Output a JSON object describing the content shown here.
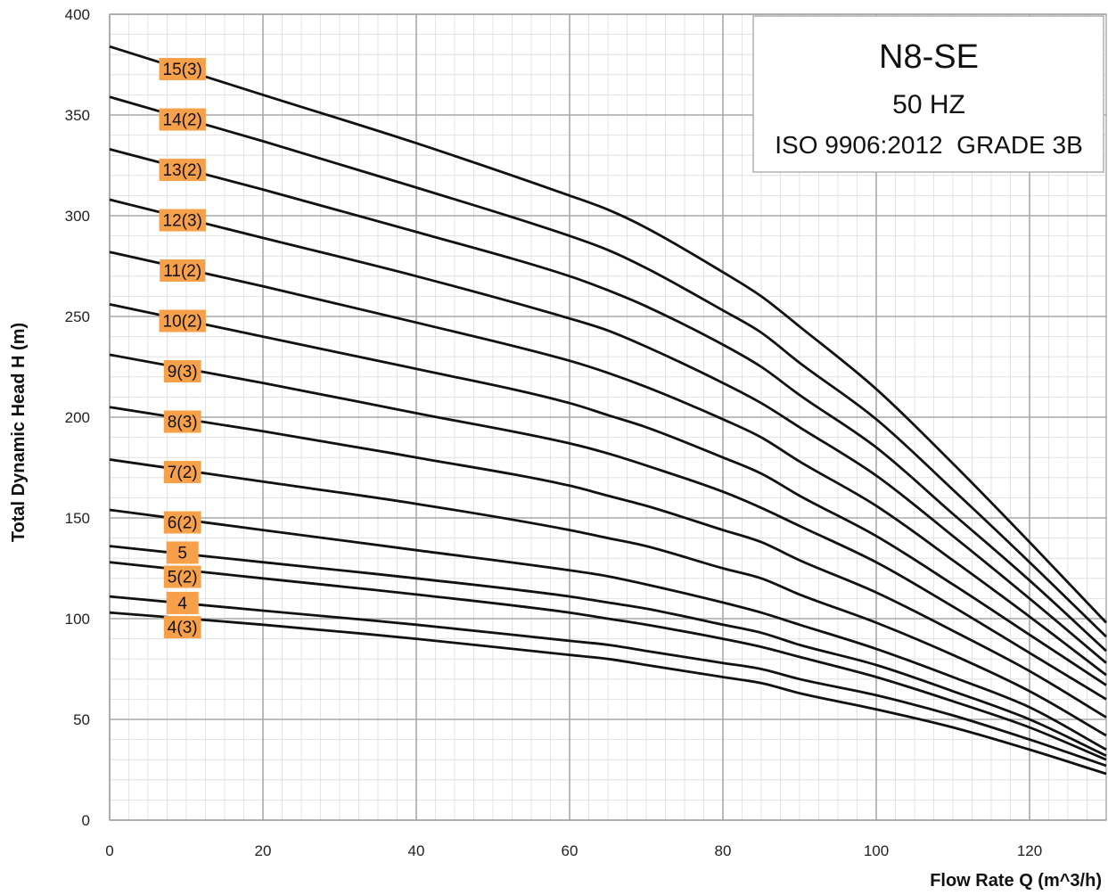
{
  "chart_data": {
    "type": "line",
    "title": "N8-SE",
    "subtitle_lines": [
      "50 HZ",
      "ISO 9906:2012  GRADE 3B"
    ],
    "xlabel": "Flow Rate Q (m^3/h)",
    "ylabel": "Total Dynamic Head  H (m)",
    "xlim": [
      0,
      130
    ],
    "ylim": [
      0,
      400
    ],
    "x_ticks": [
      0,
      20,
      40,
      60,
      80,
      100,
      120
    ],
    "y_ticks": [
      0,
      50,
      100,
      150,
      200,
      250,
      300,
      350,
      400
    ],
    "grid": "on",
    "label_color": "#f7a04a",
    "series": [
      {
        "name": "15(3)",
        "label_y": 373,
        "x": [
          0,
          20,
          40,
          60,
          65,
          70,
          80,
          85,
          90,
          100,
          110,
          120,
          130
        ],
        "y": [
          384,
          360,
          336,
          310,
          303,
          294,
          272,
          260,
          245,
          214,
          177,
          138,
          98
        ]
      },
      {
        "name": "14(2)",
        "label_y": 348,
        "x": [
          0,
          20,
          40,
          60,
          65,
          70,
          80,
          85,
          90,
          100,
          110,
          120,
          130
        ],
        "y": [
          359,
          337,
          314,
          290,
          283,
          274,
          253,
          242,
          227,
          199,
          164,
          128,
          91
        ]
      },
      {
        "name": "13(2)",
        "label_y": 323,
        "x": [
          0,
          20,
          40,
          60,
          65,
          70,
          80,
          85,
          90,
          100,
          110,
          120,
          130
        ],
        "y": [
          333,
          313,
          292,
          270,
          263,
          255,
          236,
          225,
          211,
          185,
          152,
          119,
          84
        ]
      },
      {
        "name": "12(3)",
        "label_y": 298,
        "x": [
          0,
          20,
          40,
          60,
          65,
          70,
          80,
          85,
          90,
          100,
          110,
          120,
          130
        ],
        "y": [
          308,
          289,
          270,
          249,
          243,
          235,
          217,
          207,
          195,
          171,
          141,
          110,
          78
        ]
      },
      {
        "name": "11(2)",
        "label_y": 273,
        "x": [
          0,
          20,
          40,
          60,
          65,
          70,
          80,
          85,
          90,
          100,
          110,
          120,
          130
        ],
        "y": [
          282,
          265,
          247,
          228,
          222,
          215,
          199,
          190,
          178,
          156,
          129,
          101,
          72
        ]
      },
      {
        "name": "10(2)",
        "label_y": 248,
        "x": [
          0,
          20,
          40,
          60,
          65,
          70,
          80,
          85,
          90,
          100,
          110,
          120,
          130
        ],
        "y": [
          256,
          240,
          224,
          207,
          201,
          195,
          180,
          172,
          161,
          141,
          117,
          92,
          67
        ]
      },
      {
        "name": "9(3)",
        "label_y": 223,
        "x": [
          0,
          20,
          40,
          60,
          65,
          70,
          80,
          85,
          90,
          100,
          110,
          120,
          130
        ],
        "y": [
          231,
          217,
          202,
          187,
          182,
          176,
          163,
          155,
          146,
          128,
          106,
          83,
          60
        ]
      },
      {
        "name": "8(3)",
        "label_y": 198,
        "x": [
          0,
          20,
          40,
          60,
          65,
          70,
          80,
          85,
          90,
          100,
          110,
          120,
          130
        ],
        "y": [
          205,
          193,
          180,
          166,
          161,
          156,
          144,
          138,
          129,
          113,
          94,
          74,
          51
        ]
      },
      {
        "name": "7(2)",
        "label_y": 173,
        "x": [
          0,
          20,
          40,
          60,
          65,
          70,
          80,
          85,
          90,
          100,
          110,
          120,
          130
        ],
        "y": [
          179,
          168,
          157,
          144,
          140,
          136,
          125,
          120,
          112,
          98,
          82,
          64,
          42
        ]
      },
      {
        "name": "6(2)",
        "label_y": 148,
        "x": [
          0,
          20,
          40,
          60,
          65,
          70,
          80,
          85,
          90,
          100,
          110,
          120,
          130
        ],
        "y": [
          154,
          144,
          134,
          124,
          121,
          117,
          108,
          103,
          97,
          85,
          71,
          56,
          35
        ]
      },
      {
        "name": "5",
        "label_y": 133,
        "x": [
          0,
          20,
          40,
          60,
          65,
          70,
          80,
          85,
          90,
          100,
          110,
          120,
          130
        ],
        "y": [
          136,
          128,
          120,
          111,
          108,
          105,
          97,
          93,
          87,
          77,
          64,
          50,
          32
        ]
      },
      {
        "name": "5(2)",
        "label_y": 121,
        "x": [
          0,
          20,
          40,
          60,
          65,
          70,
          80,
          85,
          90,
          100,
          110,
          120,
          130
        ],
        "y": [
          128,
          120,
          112,
          103,
          100,
          97,
          90,
          86,
          81,
          71,
          59,
          46,
          30
        ]
      },
      {
        "name": "4",
        "label_y": 108,
        "x": [
          0,
          20,
          40,
          60,
          65,
          70,
          80,
          85,
          90,
          100,
          110,
          120,
          130
        ],
        "y": [
          111,
          104,
          97,
          89,
          87,
          84,
          78,
          75,
          70,
          62,
          52,
          40,
          27
        ]
      },
      {
        "name": "4(3)",
        "label_y": 96,
        "x": [
          0,
          20,
          40,
          60,
          65,
          70,
          80,
          85,
          90,
          100,
          110,
          120,
          130
        ],
        "y": [
          103,
          97,
          90,
          82,
          80,
          77,
          71,
          68,
          63,
          55,
          46,
          35,
          23
        ]
      }
    ]
  }
}
